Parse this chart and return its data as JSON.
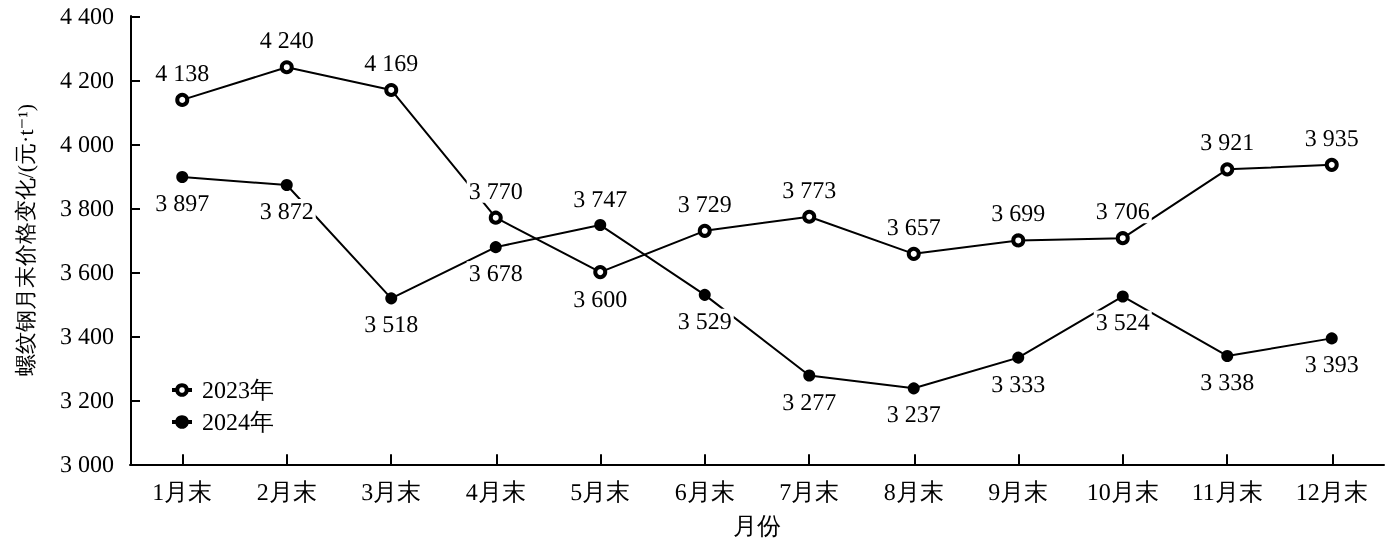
{
  "chart_data": {
    "type": "line",
    "xlabel": "月份",
    "ylabel": "螺纹钢月末价格变化/(元·t⁻¹)",
    "categories": [
      "1月末",
      "2月末",
      "3月末",
      "4月末",
      "5月末",
      "6月末",
      "7月末",
      "8月末",
      "9月末",
      "10月末",
      "11月末",
      "12月末"
    ],
    "series": [
      {
        "name": "2023年",
        "color": "#000000",
        "values": [
          4138,
          4240,
          4169,
          3770,
          3600,
          3729,
          3773,
          3657,
          3699,
          3706,
          3921,
          3935
        ],
        "value_labels": [
          "4 138",
          "4 240",
          "4 169",
          "3 770",
          "3 600",
          "3 729",
          "3 773",
          "3 657",
          "3 699",
          "3 706",
          "3 921",
          "3 935"
        ]
      },
      {
        "name": "2024年",
        "color": "#000000",
        "values": [
          3897,
          3872,
          3518,
          3678,
          3747,
          3529,
          3277,
          3237,
          3333,
          3524,
          3338,
          3393
        ],
        "value_labels": [
          "3 897",
          "3 872",
          "3 518",
          "3 678",
          "3 747",
          "3 529",
          "3 277",
          "3 237",
          "3 333",
          "3 524",
          "3 338",
          "3 393"
        ]
      }
    ],
    "ylim": [
      3000,
      4400
    ],
    "yticks": [
      {
        "value": 3000,
        "label": "3 000"
      },
      {
        "value": 3200,
        "label": "3 200"
      },
      {
        "value": 3400,
        "label": "3 400"
      },
      {
        "value": 3600,
        "label": "3 600"
      },
      {
        "value": 3800,
        "label": "3 800"
      },
      {
        "value": 4000,
        "label": "4 000"
      },
      {
        "value": 4200,
        "label": "4 200"
      },
      {
        "value": 4400,
        "label": "4 400"
      }
    ],
    "grid": false,
    "legend": "bottom left",
    "marker": "circle",
    "line_style": "solid"
  }
}
